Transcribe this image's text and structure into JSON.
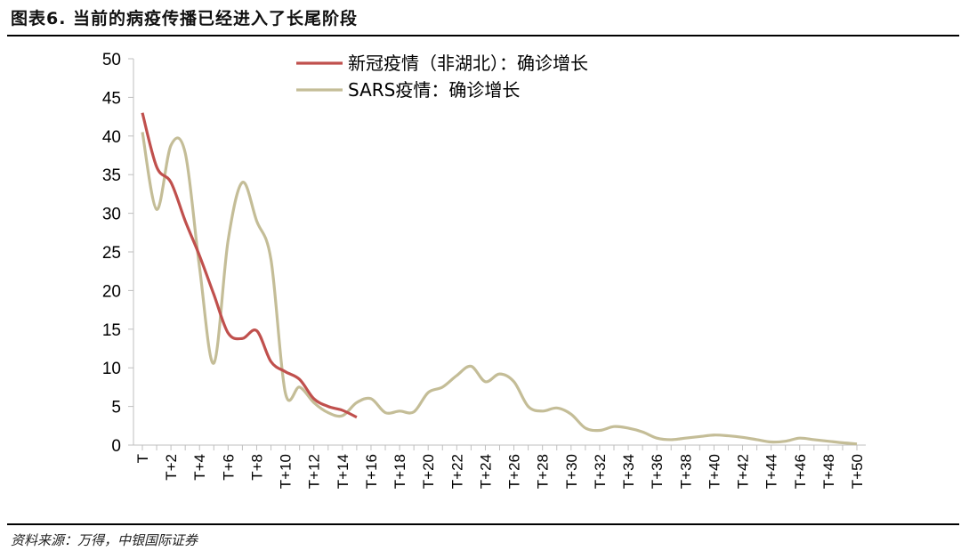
{
  "figure": {
    "title": "图表6. 当前的病疫传播已经进入了长尾阶段",
    "source": "资料来源：万得，中银国际证券"
  },
  "chart_data": {
    "type": "line",
    "title": "",
    "xlabel": "",
    "ylabel": "",
    "ylim": [
      0,
      50
    ],
    "yticks": [
      0,
      5,
      10,
      15,
      20,
      25,
      30,
      35,
      40,
      45,
      50
    ],
    "xtick_labels": [
      "T",
      "T+2",
      "T+4",
      "T+6",
      "T+8",
      "T+10",
      "T+12",
      "T+14",
      "T+16",
      "T+18",
      "T+20",
      "T+22",
      "T+24",
      "T+26",
      "T+28",
      "T+30",
      "T+32",
      "T+34",
      "T+36",
      "T+38",
      "T+40",
      "T+42",
      "T+44",
      "T+46",
      "T+48",
      "T+50"
    ],
    "grid": false,
    "legend_position": "top-center",
    "series": [
      {
        "name": "新冠疫情（非湖北）：确诊增长",
        "color": "#C0504D",
        "x": [
          0,
          1,
          2,
          3,
          4,
          5,
          6,
          7,
          8,
          9,
          10,
          11,
          12,
          13,
          14,
          15
        ],
        "values": [
          43,
          36,
          34,
          29,
          24.5,
          19.5,
          14.5,
          13.8,
          14.8,
          10.8,
          9.5,
          8.5,
          6,
          5,
          4.5,
          3.6
        ]
      },
      {
        "name": "SARS疫情：确诊增长",
        "color": "#C4BD97",
        "x": [
          0,
          1,
          2,
          3,
          4,
          5,
          6,
          7,
          8,
          9,
          10,
          11,
          12,
          13,
          14,
          15,
          16,
          17,
          18,
          19,
          20,
          21,
          22,
          23,
          24,
          25,
          26,
          27,
          28,
          29,
          30,
          31,
          32,
          33,
          34,
          35,
          36,
          37,
          38,
          39,
          40,
          41,
          42,
          43,
          44,
          45,
          46,
          47,
          48,
          49,
          50
        ],
        "values": [
          40.5,
          30.5,
          38.8,
          37.8,
          23,
          10.6,
          26.5,
          34,
          29,
          24,
          6.8,
          7.5,
          5.5,
          4.2,
          3.8,
          5.5,
          6,
          4.2,
          4.4,
          4.3,
          6.8,
          7.5,
          9,
          10.2,
          8.2,
          9.2,
          8.2,
          5,
          4.4,
          4.8,
          4,
          2.2,
          1.9,
          2.4,
          2.2,
          1.7,
          0.9,
          0.7,
          0.9,
          1.1,
          1.3,
          1.2,
          1,
          0.7,
          0.4,
          0.5,
          0.9,
          0.7,
          0.5,
          0.3,
          0.15
        ]
      }
    ]
  }
}
